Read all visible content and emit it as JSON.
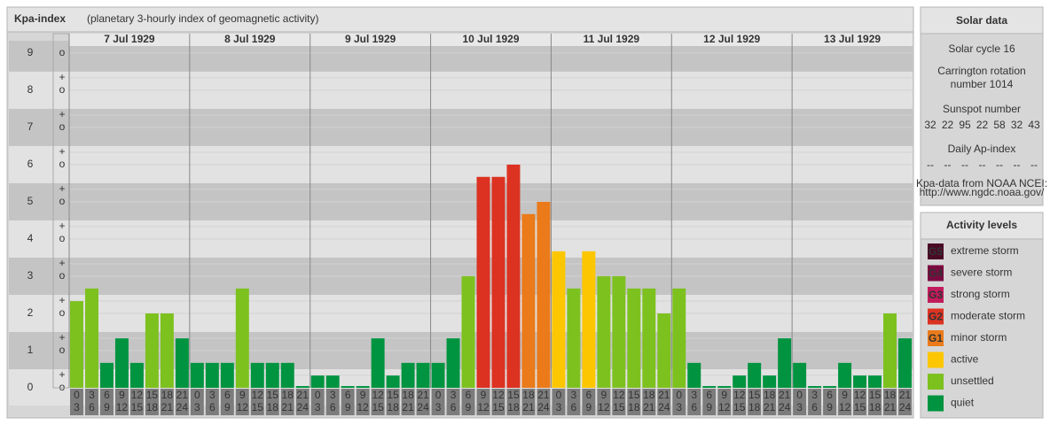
{
  "chart_data": {
    "type": "bar",
    "title": "Kpa-index",
    "subtitle": "(planetary 3-hourly index of geomagnetic activity)",
    "days": [
      "7 Jul 1929",
      "8 Jul 1929",
      "9 Jul 1929",
      "10 Jul 1929",
      "11 Jul 1929",
      "12 Jul 1929",
      "13 Jul 1929"
    ],
    "hours": [
      [
        "0",
        "3"
      ],
      [
        "3",
        "6"
      ],
      [
        "6",
        "9"
      ],
      [
        "9",
        "12"
      ],
      [
        "12",
        "15"
      ],
      [
        "15",
        "18"
      ],
      [
        "18",
        "21"
      ],
      [
        "21",
        "24"
      ]
    ],
    "values": [
      2.33,
      2.67,
      0.67,
      1.33,
      0.67,
      2,
      2,
      1.33,
      0.67,
      0.67,
      0.67,
      2.67,
      0.67,
      0.67,
      0.67,
      0,
      0.33,
      0.33,
      0,
      0,
      1.33,
      0.33,
      0.67,
      0.67,
      0.67,
      1.33,
      3,
      5.67,
      5.67,
      6,
      4.67,
      5,
      3.67,
      2.67,
      3.67,
      3,
      3,
      2.67,
      2.67,
      2,
      2.67,
      0.67,
      0,
      0,
      0.33,
      0.67,
      0.33,
      1.33,
      0.67,
      0,
      0,
      0.67,
      0.33,
      0.33,
      2,
      1.33
    ],
    "colors": [
      "#7dc11f",
      "#7dc11f",
      "#009440",
      "#009440",
      "#009440",
      "#7dc11f",
      "#7dc11f",
      "#009440",
      "#009440",
      "#009440",
      "#009440",
      "#7dc11f",
      "#009440",
      "#009440",
      "#009440",
      "#009440",
      "#009440",
      "#009440",
      "#009440",
      "#009440",
      "#009440",
      "#009440",
      "#009440",
      "#009440",
      "#009440",
      "#009440",
      "#7dc11f",
      "#dc3222",
      "#dc3222",
      "#dc3222",
      "#ea7a1a",
      "#ea7a1a",
      "#fcc600",
      "#7dc11f",
      "#fcc600",
      "#7dc11f",
      "#7dc11f",
      "#7dc11f",
      "#7dc11f",
      "#7dc11f",
      "#7dc11f",
      "#009440",
      "#009440",
      "#009440",
      "#009440",
      "#009440",
      "#009440",
      "#009440",
      "#009440",
      "#009440",
      "#009440",
      "#009440",
      "#009440",
      "#009440",
      "#7dc11f",
      "#009440"
    ],
    "ylim": [
      0,
      9.33
    ],
    "yticks": [
      0,
      1,
      2,
      3,
      4,
      5,
      6,
      7,
      8,
      9
    ],
    "subtick_labels": [
      "o",
      "+",
      "-"
    ]
  },
  "solar_data": {
    "title": "Solar data",
    "solar_cycle": "Solar cycle 16",
    "carrington": [
      "Carrington rotation",
      "number 1014"
    ],
    "sunspot_title": "Sunspot number",
    "sunspot": [
      "32",
      "22",
      "95",
      "22",
      "58",
      "32",
      "43"
    ],
    "ap_title": "Daily Ap-index",
    "ap": [
      "--",
      "--",
      "--",
      "--",
      "--",
      "--",
      "--"
    ],
    "source": [
      "Kpa-data from NOAA NCEI:",
      "http://www.ngdc.noaa.gov/"
    ]
  },
  "activity_levels": {
    "title": "Activity levels",
    "items": [
      {
        "badge": "G5",
        "label": "extreme storm",
        "color": "#4a0a26"
      },
      {
        "badge": "G4",
        "label": "severe storm",
        "color": "#7a0b40"
      },
      {
        "badge": "G3",
        "label": "strong storm",
        "color": "#c21b5c"
      },
      {
        "badge": "G2",
        "label": "moderate storm",
        "color": "#dc3222"
      },
      {
        "badge": "G1",
        "label": "minor storm",
        "color": "#ea7a1a"
      },
      {
        "label": "active",
        "color": "#fcc600"
      },
      {
        "label": "unsettled",
        "color": "#7dc11f"
      },
      {
        "label": "quiet",
        "color": "#009440"
      }
    ]
  }
}
